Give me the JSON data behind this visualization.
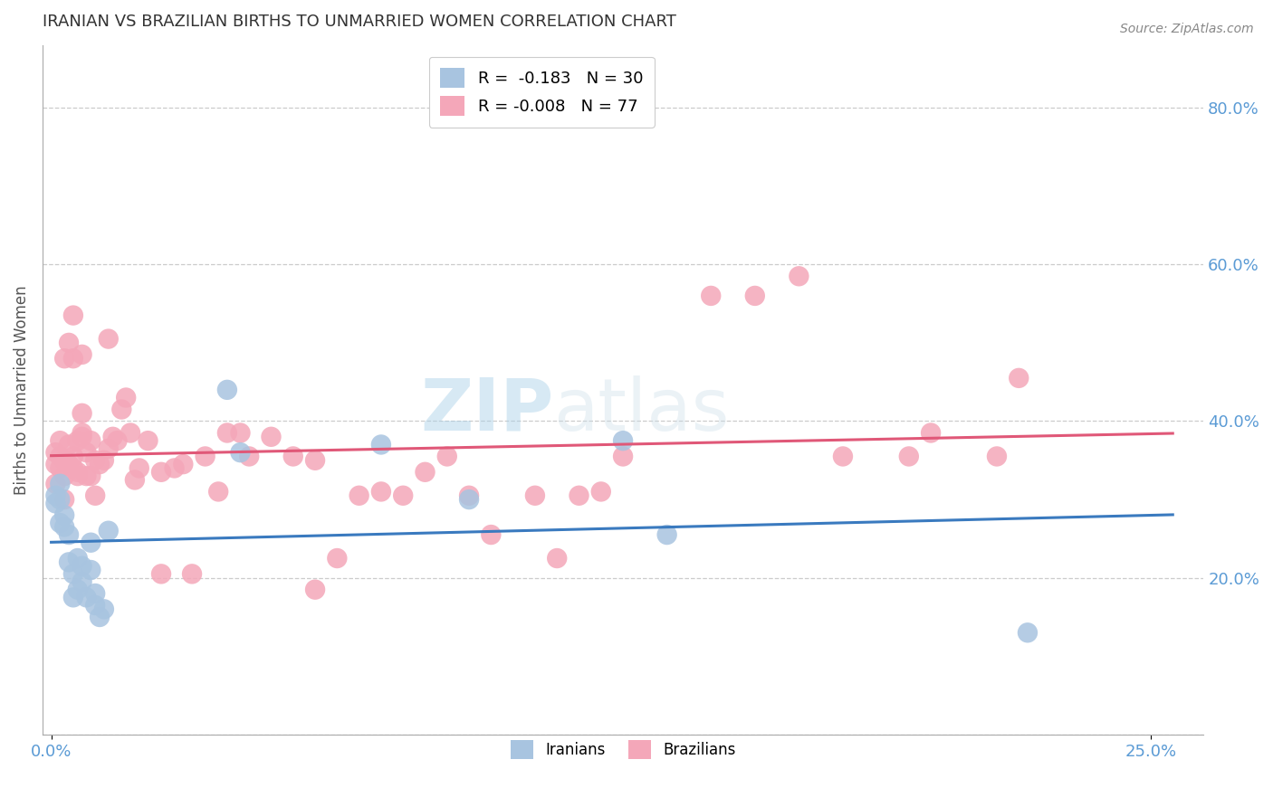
{
  "title": "IRANIAN VS BRAZILIAN BIRTHS TO UNMARRIED WOMEN CORRELATION CHART",
  "source": "Source: ZipAtlas.com",
  "ylabel": "Births to Unmarried Women",
  "xlabel_ticks": [
    "0.0%",
    "25.0%"
  ],
  "xlabel_vals": [
    0.0,
    0.25
  ],
  "ylim": [
    0.0,
    0.88
  ],
  "xlim": [
    -0.002,
    0.262
  ],
  "yticks": [
    0.0,
    0.2,
    0.4,
    0.6,
    0.8
  ],
  "ytick_labels_right": [
    "",
    "20.0%",
    "40.0%",
    "60.0%",
    "80.0%"
  ],
  "legend1_r": "-0.183",
  "legend1_n": "30",
  "legend2_r": "-0.008",
  "legend2_n": "77",
  "iranian_color": "#a8c4e0",
  "brazilian_color": "#f4a7b9",
  "iranian_line_color": "#3a7abf",
  "brazilian_line_color": "#e05878",
  "watermark_zip": "ZIP",
  "watermark_atlas": "atlas",
  "background_color": "#ffffff",
  "grid_color": "#cccccc",
  "title_color": "#333333",
  "axis_label_color": "#555555",
  "tick_label_color": "#5b9bd5",
  "iranians_x": [
    0.001,
    0.001,
    0.002,
    0.002,
    0.002,
    0.003,
    0.003,
    0.004,
    0.004,
    0.005,
    0.005,
    0.006,
    0.006,
    0.007,
    0.007,
    0.008,
    0.009,
    0.009,
    0.01,
    0.01,
    0.011,
    0.012,
    0.013,
    0.04,
    0.043,
    0.075,
    0.095,
    0.13,
    0.14,
    0.222
  ],
  "iranians_y": [
    0.305,
    0.295,
    0.32,
    0.3,
    0.27,
    0.265,
    0.28,
    0.255,
    0.22,
    0.205,
    0.175,
    0.225,
    0.185,
    0.195,
    0.215,
    0.175,
    0.245,
    0.21,
    0.18,
    0.165,
    0.15,
    0.16,
    0.26,
    0.44,
    0.36,
    0.37,
    0.3,
    0.375,
    0.255,
    0.13
  ],
  "brazilians_x": [
    0.001,
    0.001,
    0.001,
    0.002,
    0.002,
    0.002,
    0.003,
    0.003,
    0.003,
    0.003,
    0.004,
    0.004,
    0.004,
    0.005,
    0.005,
    0.005,
    0.006,
    0.006,
    0.006,
    0.007,
    0.007,
    0.007,
    0.008,
    0.008,
    0.009,
    0.009,
    0.01,
    0.01,
    0.011,
    0.012,
    0.013,
    0.013,
    0.014,
    0.015,
    0.016,
    0.017,
    0.018,
    0.019,
    0.02,
    0.022,
    0.025,
    0.028,
    0.03,
    0.032,
    0.035,
    0.038,
    0.04,
    0.043,
    0.045,
    0.05,
    0.055,
    0.06,
    0.065,
    0.07,
    0.075,
    0.08,
    0.085,
    0.09,
    0.095,
    0.1,
    0.11,
    0.115,
    0.12,
    0.125,
    0.13,
    0.15,
    0.16,
    0.17,
    0.18,
    0.195,
    0.2,
    0.215,
    0.22,
    0.005,
    0.007,
    0.025,
    0.06
  ],
  "brazilians_y": [
    0.345,
    0.32,
    0.36,
    0.355,
    0.375,
    0.34,
    0.33,
    0.35,
    0.3,
    0.48,
    0.5,
    0.345,
    0.37,
    0.355,
    0.34,
    0.48,
    0.335,
    0.375,
    0.33,
    0.385,
    0.41,
    0.38,
    0.33,
    0.36,
    0.375,
    0.33,
    0.305,
    0.35,
    0.345,
    0.35,
    0.505,
    0.365,
    0.38,
    0.375,
    0.415,
    0.43,
    0.385,
    0.325,
    0.34,
    0.375,
    0.335,
    0.34,
    0.345,
    0.205,
    0.355,
    0.31,
    0.385,
    0.385,
    0.355,
    0.38,
    0.355,
    0.35,
    0.225,
    0.305,
    0.31,
    0.305,
    0.335,
    0.355,
    0.305,
    0.255,
    0.305,
    0.225,
    0.305,
    0.31,
    0.355,
    0.56,
    0.56,
    0.585,
    0.355,
    0.355,
    0.385,
    0.355,
    0.455,
    0.535,
    0.485,
    0.205,
    0.185
  ]
}
